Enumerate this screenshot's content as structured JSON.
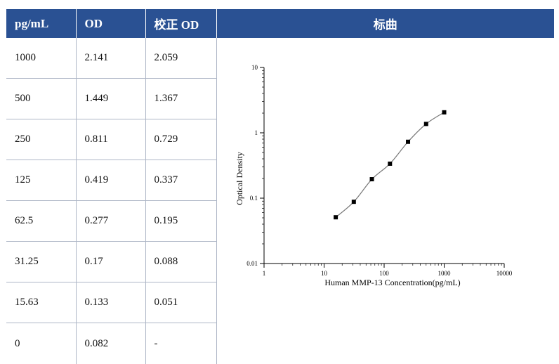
{
  "table": {
    "headers": [
      "pg/mL",
      "OD",
      "校正 OD",
      "标曲"
    ],
    "rows": [
      [
        "1000",
        "2.141",
        "2.059"
      ],
      [
        "500",
        "1.449",
        "1.367"
      ],
      [
        "250",
        "0.811",
        "0.729"
      ],
      [
        "125",
        "0.419",
        "0.337"
      ],
      [
        "62.5",
        "0.277",
        "0.195"
      ],
      [
        "31.25",
        "0.17",
        "0.088"
      ],
      [
        "15.63",
        "0.133",
        "0.051"
      ],
      [
        "0",
        "0.082",
        "-"
      ]
    ]
  },
  "chart_data": {
    "type": "scatter",
    "xlabel": "Human MMP-13 Concentration(pg/mL)",
    "ylabel": "Optical Density",
    "x_scale": "log",
    "y_scale": "log",
    "xlim": [
      1,
      10000
    ],
    "ylim": [
      0.01,
      10
    ],
    "x_ticks": [
      "1",
      "10",
      "100",
      "1000",
      "10000"
    ],
    "y_ticks": [
      "0.01",
      "0.1",
      "1",
      "10"
    ],
    "x": [
      15.63,
      31.25,
      62.5,
      125,
      250,
      500,
      1000
    ],
    "y": [
      0.051,
      0.088,
      0.195,
      0.337,
      0.729,
      1.367,
      2.059
    ],
    "fit_curve": true,
    "marker_color": "#000000",
    "curve_color": "#777777"
  }
}
